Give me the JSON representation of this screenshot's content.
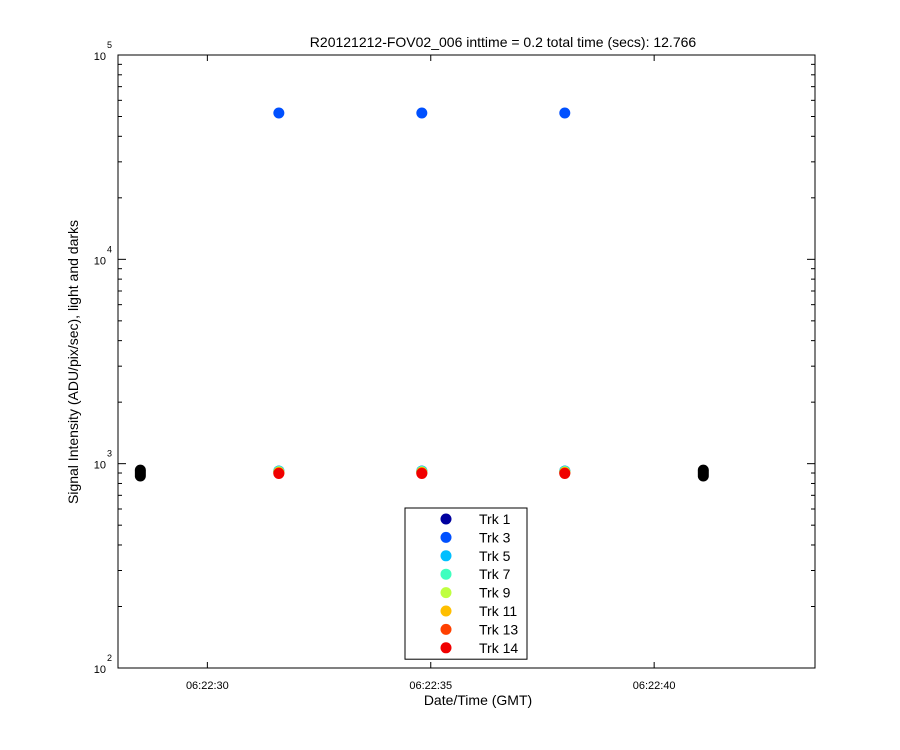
{
  "chart_data": {
    "type": "scatter",
    "title": "R20121212-FOV02_006 inttime = 0.2 total time (secs): 12.766",
    "xlabel": "Date/Time (GMT)",
    "ylabel": "Signal Intensity (ADU/pix/sec), light and darks",
    "x_unit": "seconds past 06:22:00 GMT",
    "xlim": [
      28.0,
      43.6
    ],
    "ylim": [
      100,
      100000
    ],
    "y_scale": "log",
    "x_ticks": [
      {
        "value": 30,
        "label": "06:22:30"
      },
      {
        "value": 35,
        "label": "06:22:35"
      },
      {
        "value": 40,
        "label": "06:22:40"
      }
    ],
    "y_ticks": [
      {
        "value": 100,
        "base": "10",
        "exp": "2"
      },
      {
        "value": 1000,
        "base": "10",
        "exp": "3"
      },
      {
        "value": 10000,
        "base": "10",
        "exp": "4"
      },
      {
        "value": 100000,
        "base": "10",
        "exp": "5"
      }
    ],
    "legend_position": "bottom-center",
    "series": [
      {
        "name": "Trk 1",
        "color": "#00009f",
        "points": [
          [
            31.6,
            920
          ],
          [
            34.8,
            920
          ],
          [
            38.0,
            920
          ]
        ]
      },
      {
        "name": "Trk 3",
        "color": "#0050ff",
        "points": [
          [
            31.6,
            52000
          ],
          [
            34.8,
            52000
          ],
          [
            38.0,
            52000
          ]
        ]
      },
      {
        "name": "Trk 5",
        "color": "#00bfff",
        "points": [
          [
            31.6,
            920
          ],
          [
            34.8,
            920
          ],
          [
            38.0,
            920
          ]
        ]
      },
      {
        "name": "Trk 7",
        "color": "#40ffbf",
        "points": [
          [
            31.6,
            915
          ],
          [
            34.8,
            915
          ],
          [
            38.0,
            915
          ]
        ]
      },
      {
        "name": "Trk 9",
        "color": "#bfff40",
        "points": [
          [
            31.6,
            910
          ],
          [
            34.8,
            910
          ],
          [
            38.0,
            910
          ]
        ]
      },
      {
        "name": "Trk 11",
        "color": "#ffbf00",
        "points": [
          [
            31.6,
            905
          ],
          [
            34.8,
            905
          ],
          [
            38.0,
            905
          ]
        ]
      },
      {
        "name": "Trk 13",
        "color": "#ff4000",
        "points": [
          [
            31.6,
            900
          ],
          [
            34.8,
            900
          ],
          [
            38.0,
            900
          ]
        ]
      },
      {
        "name": "Trk 14",
        "color": "#f00000",
        "points": [
          [
            31.6,
            895
          ],
          [
            34.8,
            895
          ],
          [
            38.0,
            895
          ]
        ]
      }
    ],
    "darks": {
      "color": "#000000",
      "points": [
        [
          28.5,
          870
        ],
        [
          28.5,
          890
        ],
        [
          28.5,
          910
        ],
        [
          28.5,
          930
        ],
        [
          41.1,
          870
        ],
        [
          41.1,
          890
        ],
        [
          41.1,
          910
        ],
        [
          41.1,
          930
        ]
      ]
    }
  }
}
